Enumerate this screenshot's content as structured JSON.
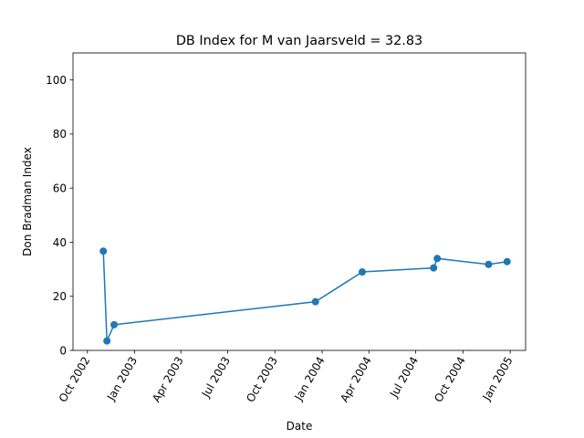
{
  "chart_data": {
    "type": "line",
    "title": "DB Index for M van Jaarsveld = 32.83",
    "xlabel": "Date",
    "ylabel": "Don Bradman Index",
    "xlim": [
      "2002-09-03",
      "2005-01-31"
    ],
    "ylim": [
      0,
      110
    ],
    "x_ticks": [
      {
        "date": "2002-10-01",
        "label": "Oct 2002"
      },
      {
        "date": "2003-01-01",
        "label": "Jan 2003"
      },
      {
        "date": "2003-04-01",
        "label": "Apr 2003"
      },
      {
        "date": "2003-07-01",
        "label": "Jul 2003"
      },
      {
        "date": "2003-10-01",
        "label": "Oct 2003"
      },
      {
        "date": "2004-01-01",
        "label": "Jan 2004"
      },
      {
        "date": "2004-04-01",
        "label": "Apr 2004"
      },
      {
        "date": "2004-07-01",
        "label": "Jul 2004"
      },
      {
        "date": "2004-10-01",
        "label": "Oct 2004"
      },
      {
        "date": "2005-01-01",
        "label": "Jan 2005"
      }
    ],
    "y_ticks": [
      {
        "value": 0,
        "label": "0"
      },
      {
        "value": 20,
        "label": "20"
      },
      {
        "value": 40,
        "label": "40"
      },
      {
        "value": 60,
        "label": "60"
      },
      {
        "value": 80,
        "label": "80"
      },
      {
        "value": 100,
        "label": "100"
      }
    ],
    "grid": false,
    "series": [
      {
        "color": "#1f77b4",
        "marker": "circle",
        "points": [
          {
            "x": "2002-11-01",
            "y": 36.7
          },
          {
            "x": "2002-11-08",
            "y": 3.5
          },
          {
            "x": "2002-11-22",
            "y": 9.5
          },
          {
            "x": "2003-12-19",
            "y": 18.0
          },
          {
            "x": "2004-03-19",
            "y": 29.0
          },
          {
            "x": "2004-08-05",
            "y": 30.5
          },
          {
            "x": "2004-08-12",
            "y": 34.0
          },
          {
            "x": "2004-11-20",
            "y": 31.8
          },
          {
            "x": "2004-12-26",
            "y": 32.83
          }
        ]
      }
    ]
  }
}
